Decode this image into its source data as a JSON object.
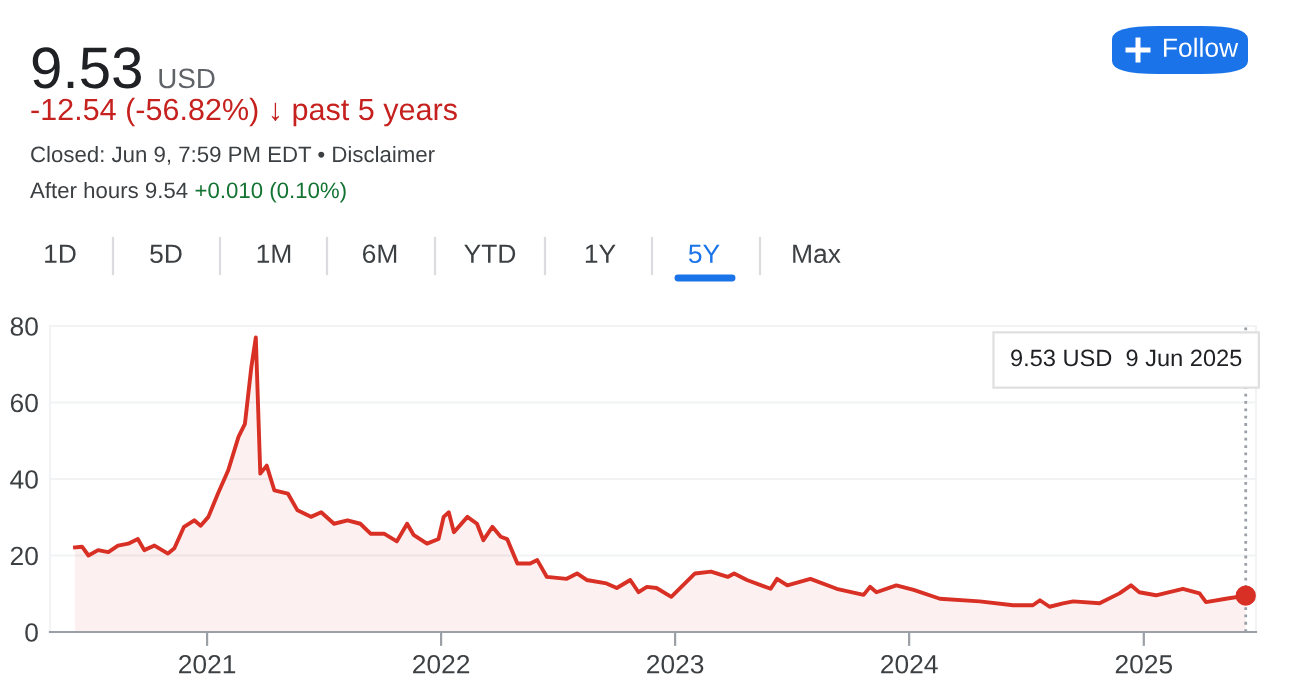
{
  "chart_data": {
    "type": "area",
    "title": "9.53",
    "subtitle": "USD",
    "annotations": [
      "-12.54 (-56.82%) ↓ past 5 years",
      "Closed: Jun 9, 7:59 PM EDT • Disclaimer",
      "After hours 9.54",
      "+0.010 (0.10%)",
      "Follow",
      "1D",
      "5D",
      "1M",
      "6M",
      "YTD",
      "1Y",
      "5Y",
      "Max",
      "9.53 USD  9 Jun 2025"
    ],
    "x": [
      "2020-06-09",
      "2020-06-20",
      "2020-06-30",
      "2020-07-15",
      "2020-07-31",
      "2020-08-15",
      "2020-08-31",
      "2020-09-15",
      "2020-09-25",
      "2020-10-11",
      "2020-11-01",
      "2020-11-11",
      "2020-11-26",
      "2020-12-12",
      "2020-12-22",
      "2021-01-03",
      "2021-01-18",
      "2021-02-03",
      "2021-02-19",
      "2021-03-01",
      "2021-03-11",
      "2021-03-18",
      "2021-03-25",
      "2021-04-04",
      "2021-04-16",
      "2021-05-07",
      "2021-05-22",
      "2021-06-12",
      "2021-06-28",
      "2021-07-18",
      "2021-08-08",
      "2021-08-28",
      "2021-09-13",
      "2021-10-04",
      "2021-10-24",
      "2021-11-09",
      "2021-11-19",
      "2021-12-10",
      "2021-12-28",
      "2022-01-05",
      "2022-01-13",
      "2022-01-21",
      "2022-02-11",
      "2022-02-26",
      "2022-03-08",
      "2022-03-22",
      "2022-04-04",
      "2022-04-14",
      "2022-04-30",
      "2022-05-20",
      "2022-05-31",
      "2022-06-15",
      "2022-07-16",
      "2022-08-01",
      "2022-08-16",
      "2022-09-16",
      "2022-10-02",
      "2022-10-23",
      "2022-11-05",
      "2022-11-18",
      "2022-12-03",
      "2022-12-26",
      "2023-02-01",
      "2023-02-26",
      "2023-03-24",
      "2023-04-03",
      "2023-04-23",
      "2023-05-30",
      "2023-06-09",
      "2023-06-25",
      "2023-07-31",
      "2023-09-10",
      "2023-10-22",
      "2023-11-01",
      "2023-11-11",
      "2023-12-12",
      "2024-01-08",
      "2024-02-18",
      "2024-04-20",
      "2024-06-11",
      "2024-07-12",
      "2024-07-23",
      "2024-08-07",
      "2024-08-28",
      "2024-09-13",
      "2024-10-24",
      "2024-11-24",
      "2024-12-12",
      "2024-12-25",
      "2025-01-20",
      "2025-03-03",
      "2025-03-29",
      "2025-04-08",
      "2025-05-09",
      "2025-06-09"
    ],
    "series": [
      {
        "color": "#d93025",
        "values": [
          22.1,
          22.3,
          20.0,
          21.4,
          20.9,
          22.6,
          23.1,
          24.3,
          21.4,
          22.6,
          20.5,
          21.9,
          27.5,
          29.2,
          27.8,
          30.1,
          36.2,
          42.3,
          51.0,
          54.4,
          69.2,
          77.0,
          41.4,
          43.5,
          37.0,
          36.2,
          31.8,
          30.1,
          31.3,
          28.3,
          29.2,
          28.3,
          25.7,
          25.7,
          23.7,
          28.3,
          25.4,
          23.1,
          24.3,
          30.1,
          31.3,
          26.1,
          30.1,
          28.3,
          24.0,
          27.5,
          24.9,
          24.3,
          17.9,
          17.9,
          18.8,
          14.4,
          13.9,
          15.3,
          13.6,
          12.7,
          11.5,
          13.6,
          10.4,
          11.8,
          11.5,
          9.2,
          15.3,
          15.8,
          14.4,
          15.3,
          13.6,
          11.3,
          13.9,
          12.2,
          13.9,
          11.3,
          9.7,
          11.8,
          10.4,
          12.2,
          11.0,
          8.7,
          8.0,
          7.0,
          7.0,
          8.3,
          6.6,
          7.5,
          8.0,
          7.5,
          10.1,
          12.2,
          10.4,
          9.6,
          11.3,
          10.1,
          7.8,
          8.7,
          9.5
        ]
      }
    ],
    "xlim": [
      "2020-05-01",
      "2025-06-25"
    ],
    "xticks": [
      {
        "value": "2021-01-01",
        "label": "2021"
      },
      {
        "value": "2022-01-01",
        "label": "2022"
      },
      {
        "value": "2023-01-01",
        "label": "2023"
      },
      {
        "value": "2024-01-01",
        "label": "2024"
      },
      {
        "value": "2025-01-01",
        "label": "2025"
      }
    ],
    "ylim": [
      0,
      80
    ],
    "yticks": [
      0,
      20,
      40,
      60,
      80
    ],
    "ref_lines": [
      {
        "axis": "x",
        "value": "2025-06-09",
        "color": "#9aa0a6",
        "line_style": "dotted"
      }
    ],
    "grid": "y",
    "legend": false,
    "marker": "none",
    "line_style": "solid"
  }
}
